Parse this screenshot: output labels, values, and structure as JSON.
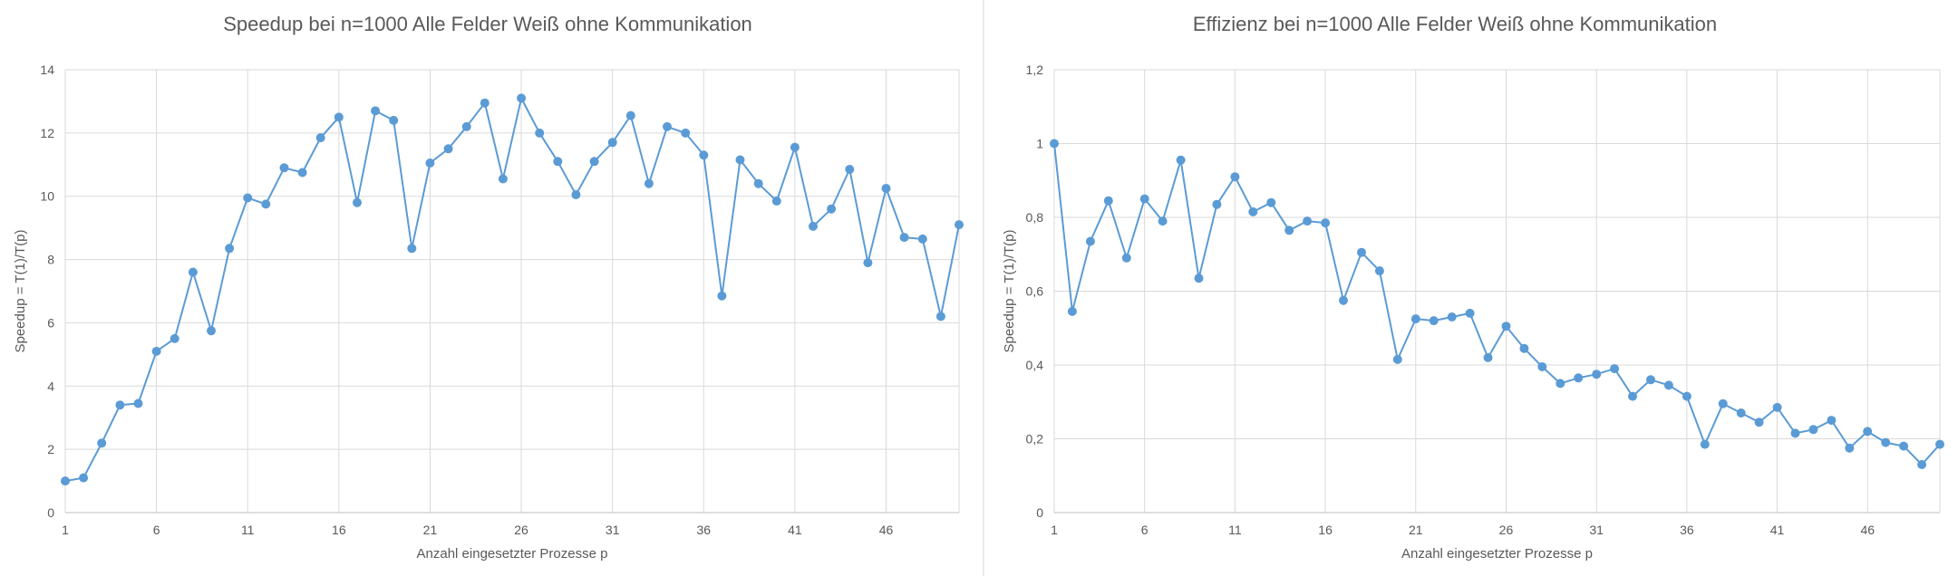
{
  "colors": {
    "series": "#5b9bd5",
    "grid": "#d9d9d9",
    "text": "#595959"
  },
  "chart_data": [
    {
      "type": "line",
      "title": "Speedup bei n=1000 Alle Felder Weiß ohne Kommunikation",
      "xlabel": "Anzahl eingesetzter Prozesse p",
      "ylabel": "Speedup = T(1)/T(p)",
      "xlim": [
        1,
        50
      ],
      "ylim": [
        0,
        14
      ],
      "x_ticks": [
        1,
        6,
        11,
        16,
        21,
        26,
        31,
        36,
        41,
        46
      ],
      "y_ticks": [
        0,
        2,
        4,
        6,
        8,
        10,
        12,
        14
      ],
      "y_tick_labels": [
        "0",
        "2",
        "4",
        "6",
        "8",
        "10",
        "12",
        "14"
      ],
      "grid": true,
      "x": [
        1,
        2,
        3,
        4,
        5,
        6,
        7,
        8,
        9,
        10,
        11,
        12,
        13,
        14,
        15,
        16,
        17,
        18,
        19,
        20,
        21,
        22,
        23,
        24,
        25,
        26,
        27,
        28,
        29,
        30,
        31,
        32,
        33,
        34,
        35,
        36,
        37,
        38,
        39,
        40,
        41,
        42,
        43,
        44,
        45,
        46,
        47,
        48,
        49,
        50
      ],
      "series": [
        {
          "values": [
            1.0,
            1.1,
            2.2,
            3.4,
            3.45,
            5.1,
            5.5,
            7.6,
            5.75,
            8.35,
            9.95,
            9.75,
            10.9,
            10.75,
            11.85,
            12.5,
            9.8,
            12.7,
            12.4,
            8.35,
            11.05,
            11.5,
            12.2,
            12.95,
            10.55,
            13.1,
            12.0,
            11.1,
            10.05,
            11.1,
            11.7,
            12.55,
            10.4,
            12.2,
            12.0,
            11.3,
            6.85,
            11.15,
            10.4,
            9.85,
            11.55,
            9.05,
            9.6,
            10.85,
            7.9,
            10.25,
            8.7,
            8.65,
            6.2,
            9.1
          ]
        }
      ]
    },
    {
      "type": "line",
      "title": "Effizienz bei n=1000 Alle Felder Weiß ohne Kommunikation",
      "xlabel": "Anzahl eingesetzter Prozesse p",
      "ylabel": "Speedup = T(1)/T(p)",
      "xlim": [
        1,
        50
      ],
      "ylim": [
        0,
        1.2
      ],
      "x_ticks": [
        1,
        6,
        11,
        16,
        21,
        26,
        31,
        36,
        41,
        46
      ],
      "y_ticks": [
        0,
        0.2,
        0.4,
        0.6,
        0.8,
        1.0,
        1.2
      ],
      "y_tick_labels": [
        "0",
        "0,2",
        "0,4",
        "0,6",
        "0,8",
        "1",
        "1,2"
      ],
      "grid": true,
      "x": [
        1,
        2,
        3,
        4,
        5,
        6,
        7,
        8,
        9,
        10,
        11,
        12,
        13,
        14,
        15,
        16,
        17,
        18,
        19,
        20,
        21,
        22,
        23,
        24,
        25,
        26,
        27,
        28,
        29,
        30,
        31,
        32,
        33,
        34,
        35,
        36,
        37,
        38,
        39,
        40,
        41,
        42,
        43,
        44,
        45,
        46,
        47,
        48,
        49,
        50
      ],
      "series": [
        {
          "values": [
            1.0,
            0.545,
            0.735,
            0.845,
            0.69,
            0.85,
            0.79,
            0.955,
            0.635,
            0.835,
            0.91,
            0.815,
            0.84,
            0.765,
            0.79,
            0.785,
            0.575,
            0.705,
            0.655,
            0.415,
            0.525,
            0.52,
            0.53,
            0.54,
            0.42,
            0.505,
            0.445,
            0.395,
            0.35,
            0.365,
            0.375,
            0.39,
            0.315,
            0.36,
            0.345,
            0.315,
            0.185,
            0.295,
            0.27,
            0.245,
            0.285,
            0.215,
            0.225,
            0.25,
            0.175,
            0.22,
            0.19,
            0.18,
            0.13,
            0.185
          ]
        }
      ]
    }
  ]
}
